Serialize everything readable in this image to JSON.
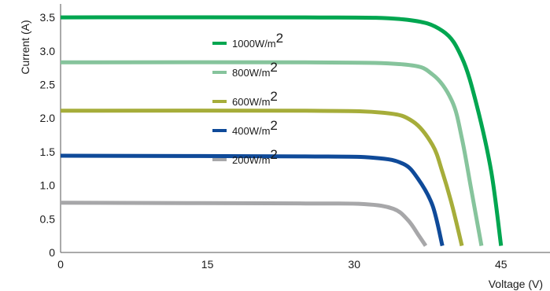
{
  "chart_data": {
    "type": "line",
    "title": "",
    "xlabel": "Voltage (V)",
    "ylabel": "Current (A)",
    "x_ticks": [
      "0",
      "15",
      "30",
      "45"
    ],
    "y_ticks": [
      "0",
      "0.5",
      "1.0",
      "1.5",
      "2.0",
      "2.5",
      "3.0",
      "3.5"
    ],
    "xlim": [
      0,
      50
    ],
    "ylim": [
      0,
      3.7
    ],
    "grid": false,
    "legend_position": "inside, stacked at left-center",
    "series": [
      {
        "name": "1000W/m2",
        "legend_base": "1000W/m",
        "legend_sup": "2",
        "color": "#00a650",
        "points": [
          [
            0,
            3.5
          ],
          [
            25,
            3.5
          ],
          [
            35,
            3.47
          ],
          [
            39,
            3.3
          ],
          [
            41,
            2.9
          ],
          [
            42.5,
            2.2
          ],
          [
            44,
            1.2
          ],
          [
            45,
            0.1
          ]
        ]
      },
      {
        "name": "800W/m2",
        "legend_base": "800W/m",
        "legend_sup": "2",
        "color": "#86c49c",
        "points": [
          [
            0,
            2.83
          ],
          [
            25,
            2.83
          ],
          [
            35,
            2.8
          ],
          [
            38,
            2.65
          ],
          [
            40,
            2.25
          ],
          [
            41,
            1.7
          ],
          [
            42,
            0.9
          ],
          [
            43,
            0.1
          ]
        ]
      },
      {
        "name": "600W/m2",
        "legend_base": "600W/m",
        "legend_sup": "2",
        "color": "#a6ad3a",
        "points": [
          [
            0,
            2.11
          ],
          [
            25,
            2.11
          ],
          [
            33,
            2.08
          ],
          [
            36,
            1.95
          ],
          [
            38,
            1.6
          ],
          [
            39,
            1.2
          ],
          [
            40,
            0.7
          ],
          [
            41,
            0.1
          ]
        ]
      },
      {
        "name": "400W/m2",
        "legend_base": "400W/m",
        "legend_sup": "2",
        "color": "#0f4a99",
        "points": [
          [
            0,
            1.44
          ],
          [
            25,
            1.43
          ],
          [
            32,
            1.41
          ],
          [
            35,
            1.32
          ],
          [
            36.5,
            1.1
          ],
          [
            38,
            0.7
          ],
          [
            39,
            0.1
          ]
        ]
      },
      {
        "name": "200W/m2",
        "legend_base": "200W/m",
        "legend_sup": "2",
        "color": "#a7a7a9",
        "points": [
          [
            0,
            0.74
          ],
          [
            25,
            0.73
          ],
          [
            31,
            0.72
          ],
          [
            34,
            0.65
          ],
          [
            35.5,
            0.48
          ],
          [
            36.6,
            0.25
          ],
          [
            37.3,
            0.1
          ]
        ]
      }
    ]
  }
}
